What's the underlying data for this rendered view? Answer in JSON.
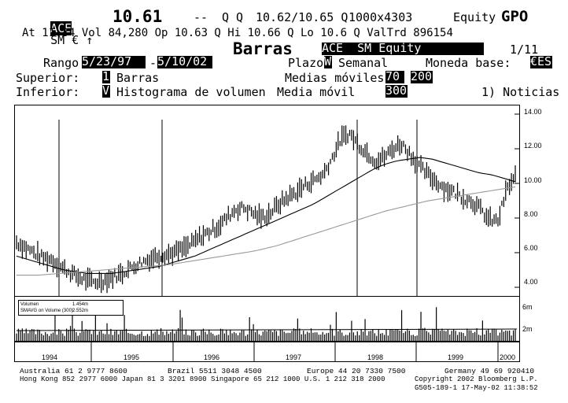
{
  "header": {
    "ticker": "ACE",
    "exchange_line": "SM € ↑",
    "last_price": "10.61",
    "dashes": "--",
    "quote_flags": "Q Q",
    "bid_ask": "10.62/10.65 Q",
    "size": "1000x4303",
    "market": "Equity",
    "function": "GPO",
    "time_line": "At 11:34 Vol 84,280 Op 10.63 Q Hi 10.66 Q Lo 10.6 Q ValTrd 896154"
  },
  "title": {
    "name": "Barras",
    "security": "ACE  SM Equity",
    "page": "1/11"
  },
  "controls": {
    "range_label": "Rango",
    "range_start": "5/23/97",
    "range_sep": "-",
    "range_end": "5/10/02",
    "period_label": "Plazo",
    "period_code": "W",
    "period_value": "Semanal",
    "currency_label": "Moneda base:",
    "currency_value": "€ES",
    "upper_label": "Superior:",
    "upper_code": "1",
    "upper_value": "Barras",
    "ma_label": "Medias móviles",
    "ma1": "70",
    "ma2": "200",
    "lower_label": "Inferior:",
    "lower_code": "V",
    "lower_value": "Histograma de volumen",
    "ma_single_label": "Media móvil",
    "ma_single": "300",
    "news": "1) Noticias"
  },
  "chart_data": {
    "type": "line",
    "title": "",
    "y_ticks": [
      "14.00",
      "12.00",
      "10.00",
      "8.00",
      "6.00",
      "4.00"
    ],
    "ylim": [
      3.5,
      14.5
    ],
    "years": [
      "1994",
      "1995",
      "1996",
      "1997",
      "1998",
      "1999",
      "2000"
    ],
    "series": [
      {
        "values": [
          6.6,
          6.3,
          6.0,
          5.7,
          5.6,
          5.2,
          4.9,
          4.6,
          4.4,
          4.3,
          4.4,
          4.6,
          4.8,
          5.1,
          5.4,
          5.6,
          5.8,
          5.9,
          6.0,
          6.2,
          6.5,
          6.9,
          7.2,
          7.5,
          8.0,
          8.5,
          8.6,
          8.3,
          8.0,
          8.3,
          8.8,
          9.2,
          9.5,
          9.9,
          10.2,
          10.5,
          11.4,
          12.5,
          12.9,
          12.3,
          11.8,
          11.3,
          11.5,
          12.0,
          12.3,
          11.7,
          11.0,
          10.5,
          10.1,
          9.7,
          9.5,
          9.2,
          9.0,
          8.5,
          7.9,
          7.8,
          9.6,
          10.4
        ]
      },
      {
        "values": [
          5.8,
          5.6,
          5.4,
          5.2,
          5.0,
          4.9,
          4.8,
          4.8,
          4.8,
          4.9,
          5.0,
          5.1,
          5.2,
          5.4,
          5.6,
          5.8,
          6.1,
          6.4,
          6.7,
          7.0,
          7.3,
          7.6,
          7.9,
          8.2,
          8.5,
          8.8,
          9.2,
          9.6,
          10.0,
          10.4,
          10.8,
          11.1,
          11.3,
          11.4,
          11.5,
          11.4,
          11.2,
          11.0,
          10.8,
          10.6,
          10.5,
          10.3,
          10.1
        ]
      },
      {
        "values": [
          4.7,
          4.7,
          4.8,
          4.9,
          5.0,
          5.1,
          5.2,
          5.3,
          5.5,
          5.7,
          5.9,
          6.1,
          6.4,
          6.8,
          7.2,
          7.6,
          8.0,
          8.4,
          8.7,
          9.0,
          9.2,
          9.4,
          9.6,
          9.8
        ]
      }
    ],
    "volume_legend": [
      {
        "label": "Volumen",
        "value": "1.454m"
      },
      {
        "label": "SMAVG on Volume (300)",
        "value": "2.552m"
      }
    ],
    "volume_ticks": [
      "6m",
      "2m"
    ]
  },
  "footer": {
    "line1_a": "Australia 61 2 9777 8600",
    "line1_b": "Brazil 5511 3048 4500",
    "line1_c": "Europe 44 20 7330 7500",
    "line1_d": "Germany 49 69 920410",
    "line2": "Hong Kong 852 2977 6000 Japan 81 3 3201 8900 Singapore 65 212 1000 U.S. 1 212 318 2000",
    "copyright": "Copyright 2002 Bloomberg L.P.",
    "stamp": "G505-189-1 17-May-02 11:38:52"
  }
}
